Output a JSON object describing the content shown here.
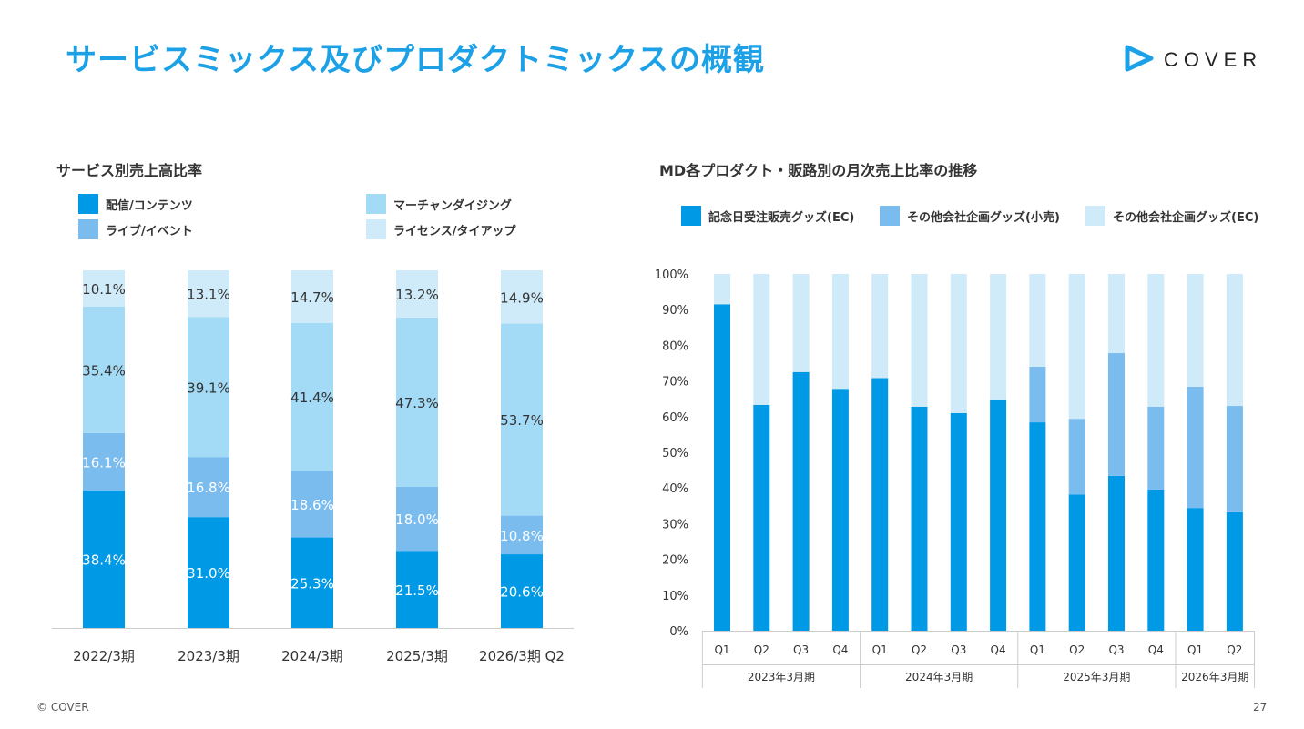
{
  "header": {
    "title": "サービスミックス及びプロダクトミックスの概観",
    "logo_text": "COVER",
    "logo_icon": "cover-play-icon"
  },
  "colors": {
    "c1": "#0099e6",
    "c2": "#7bbcef",
    "c3": "#a3daf5",
    "c4": "#cfeaf9",
    "title": "#1da1e6"
  },
  "footer": {
    "copyright": "© COVER",
    "page": "27"
  },
  "chart_data": [
    {
      "type": "bar",
      "stacked": true,
      "title": "サービス別売上高比率",
      "categories": [
        "2022/3期",
        "2023/3期",
        "2024/3期",
        "2025/3期",
        "2026/3期 Q2"
      ],
      "series": [
        {
          "name": "配信/コンテンツ",
          "values": [
            38.4,
            31.0,
            25.3,
            21.5,
            20.6
          ],
          "labels": [
            "38.4%",
            "31.0%",
            "25.3%",
            "21.5%",
            "20.6%"
          ],
          "color": "#0099e6"
        },
        {
          "name": "ライブ/イベント",
          "values": [
            16.1,
            16.8,
            18.6,
            18.0,
            10.8
          ],
          "labels": [
            "16.1%",
            "16.8%",
            "18.6%",
            "18.0%",
            "10.8%"
          ],
          "color": "#7bbcef"
        },
        {
          "name": "マーチャンダイジング",
          "values": [
            35.4,
            39.1,
            41.4,
            47.3,
            53.7
          ],
          "labels": [
            "35.4%",
            "39.1%",
            "41.4%",
            "47.3%",
            "53.7%"
          ],
          "color": "#a3daf5"
        },
        {
          "name": "ライセンス/タイアップ",
          "values": [
            10.1,
            13.1,
            14.7,
            13.2,
            14.9
          ],
          "labels": [
            "10.1%",
            "13.1%",
            "14.7%",
            "13.2%",
            "14.9%"
          ],
          "color": "#cfeaf9"
        }
      ],
      "legend": [
        "配信/コンテンツ",
        "マーチャンダイジング",
        "ライブ/イベント",
        "ライセンス/タイアップ"
      ]
    },
    {
      "type": "bar",
      "stacked": true,
      "title": "MD各プロダクト・販路別の月次売上比率の推移",
      "categories": [
        "Q1",
        "Q2",
        "Q3",
        "Q4",
        "Q1",
        "Q2",
        "Q3",
        "Q4",
        "Q1",
        "Q2",
        "Q3",
        "Q4",
        "Q1",
        "Q2"
      ],
      "groups": [
        {
          "label": "2023年3月期",
          "count": 4
        },
        {
          "label": "2024年3月期",
          "count": 4
        },
        {
          "label": "2025年3月期",
          "count": 4
        },
        {
          "label": "2026年3月期",
          "count": 2
        }
      ],
      "series": [
        {
          "name": "記念日受注販売グッズ(EC)",
          "values": [
            91.5,
            63.3,
            72.5,
            67.8,
            70.8,
            62.8,
            61,
            64.6,
            58.4,
            38.2,
            43.4,
            39.6,
            34.4,
            33.2
          ],
          "color": "#0099e6"
        },
        {
          "name": "その他会社企画グッズ(小売)",
          "values": [
            0,
            0,
            0,
            0,
            0,
            0,
            0,
            0,
            15.6,
            21.2,
            34.4,
            23.2,
            34.0,
            29.8
          ],
          "color": "#7bbcef"
        },
        {
          "name": "その他会社企画グッズ(EC)",
          "values": [
            8.5,
            36.7,
            27.5,
            32.2,
            29.2,
            37.2,
            39,
            35.4,
            26.0,
            40.6,
            22.2,
            37.2,
            31.6,
            37.0
          ],
          "color": "#cfeaf9"
        }
      ],
      "yticks": [
        "0%",
        "10%",
        "20%",
        "30%",
        "40%",
        "50%",
        "60%",
        "70%",
        "80%",
        "90%",
        "100%"
      ],
      "ylim": [
        0,
        100
      ]
    }
  ]
}
